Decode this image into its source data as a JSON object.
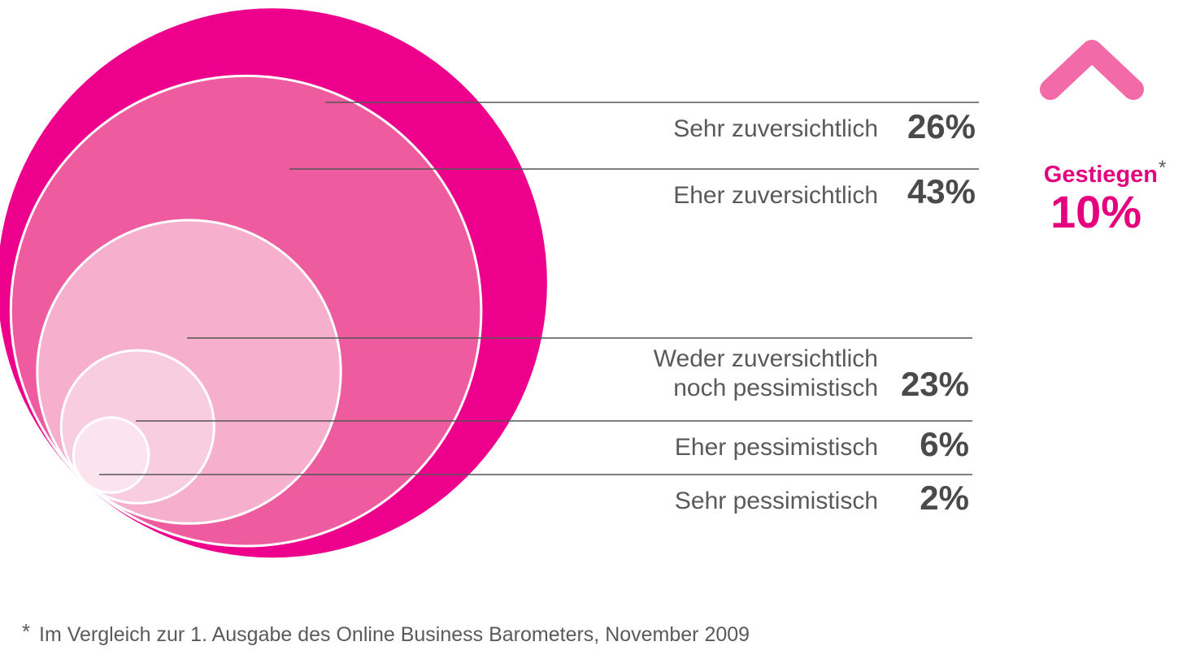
{
  "chart_data": {
    "type": "nested-circles",
    "title": "",
    "unit": "%",
    "categories": [
      "Sehr zuversichtlich",
      "Eher zuversichtlich",
      "Weder zuversichtlich noch pessimistisch",
      "Eher pessimistisch",
      "Sehr pessimistisch"
    ],
    "label_lines": [
      [
        "Sehr zuversichtlich"
      ],
      [
        "Eher zuversichtlich"
      ],
      [
        "Weder zuversichtlich",
        "noch pessimistisch"
      ],
      [
        "Eher pessimistisch"
      ],
      [
        "Sehr pessimistisch"
      ]
    ],
    "values": [
      26,
      43,
      23,
      6,
      2
    ],
    "value_labels": [
      "26%",
      "43%",
      "23%",
      "6%",
      "2%"
    ],
    "colors": [
      "#ec008c",
      "#ef5b9f",
      "#f6b0cd",
      "#f9cde0",
      "#fce4ef"
    ],
    "trend": {
      "label": "Gestiegen",
      "marker": "*",
      "value": "10%",
      "direction": "up",
      "icon": "arrow-up-icon",
      "color": "#e5007d"
    }
  },
  "footnote": {
    "marker": "*",
    "text": "Im Vergleich zur 1. Ausgabe des Online Business Barometers, November 2009"
  }
}
